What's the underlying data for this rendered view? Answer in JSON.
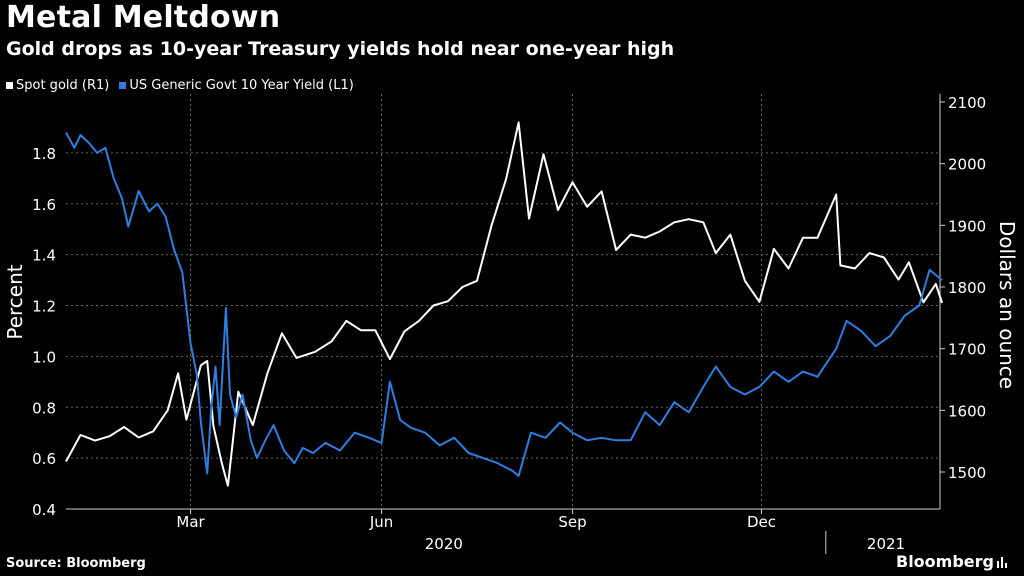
{
  "header": {
    "title": "Metal Meltdown",
    "subtitle": "Gold drops as 10-year Treasury yields hold near one-year high"
  },
  "footer": {
    "source": "Source: Bloomberg",
    "brand": "Bloomberg"
  },
  "colors": {
    "background": "#000000",
    "gold_series": "#ffffff",
    "yield_series": "#2e7fe0",
    "grid": "#666666"
  },
  "chart_data": {
    "type": "line",
    "legend_position": "top-left",
    "grid": true,
    "left_axis": {
      "label": "Percent",
      "range": [
        0.4,
        2.0
      ],
      "ticks": [
        0.4,
        0.6,
        0.8,
        1.0,
        1.2,
        1.4,
        1.6,
        1.8
      ],
      "tick_labels": [
        "0.4",
        "0.6",
        "0.8",
        "1.0",
        "1.2",
        "1.4",
        "1.6",
        "1.8"
      ]
    },
    "right_axis": {
      "label": "Dollars an ounce",
      "range": [
        1440,
        2100
      ],
      "ticks": [
        1500,
        1600,
        1700,
        1800,
        1900,
        2000,
        2100
      ],
      "tick_labels": [
        "1500",
        "1600",
        "1700",
        "1800",
        "1900",
        "2000",
        "2100"
      ]
    },
    "x_axis": {
      "range": [
        "2020-01-01",
        "2021-02-25"
      ],
      "ticks": [
        {
          "date": "2020-03-01",
          "label": "Mar"
        },
        {
          "date": "2020-06-01",
          "label": "Jun"
        },
        {
          "date": "2020-09-01",
          "label": "Sep"
        },
        {
          "date": "2020-12-01",
          "label": "Dec"
        }
      ],
      "year_labels": [
        {
          "date": "2020-07-01",
          "label": "2020"
        },
        {
          "date": "2021-01-30",
          "label": "2021"
        }
      ],
      "year_divider": "2021-01-01"
    },
    "series": [
      {
        "name": "Spot gold (R1)",
        "axis": "right",
        "points": [
          [
            "2020-01-01",
            1517
          ],
          [
            "2020-01-08",
            1560
          ],
          [
            "2020-01-15",
            1551
          ],
          [
            "2020-01-22",
            1558
          ],
          [
            "2020-01-29",
            1573
          ],
          [
            "2020-02-05",
            1556
          ],
          [
            "2020-02-12",
            1566
          ],
          [
            "2020-02-19",
            1600
          ],
          [
            "2020-02-24",
            1660
          ],
          [
            "2020-02-28",
            1585
          ],
          [
            "2020-03-06",
            1673
          ],
          [
            "2020-03-09",
            1680
          ],
          [
            "2020-03-12",
            1575
          ],
          [
            "2020-03-16",
            1515
          ],
          [
            "2020-03-19",
            1478
          ],
          [
            "2020-03-24",
            1630
          ],
          [
            "2020-03-31",
            1576
          ],
          [
            "2020-04-07",
            1660
          ],
          [
            "2020-04-14",
            1725
          ],
          [
            "2020-04-21",
            1685
          ],
          [
            "2020-04-30",
            1695
          ],
          [
            "2020-05-08",
            1712
          ],
          [
            "2020-05-15",
            1745
          ],
          [
            "2020-05-22",
            1730
          ],
          [
            "2020-05-29",
            1730
          ],
          [
            "2020-06-05",
            1683
          ],
          [
            "2020-06-12",
            1728
          ],
          [
            "2020-06-19",
            1745
          ],
          [
            "2020-06-26",
            1770
          ],
          [
            "2020-07-03",
            1777
          ],
          [
            "2020-07-10",
            1800
          ],
          [
            "2020-07-17",
            1810
          ],
          [
            "2020-07-24",
            1900
          ],
          [
            "2020-07-31",
            1975
          ],
          [
            "2020-08-06",
            2067
          ],
          [
            "2020-08-11",
            1911
          ],
          [
            "2020-08-18",
            2015
          ],
          [
            "2020-08-25",
            1925
          ],
          [
            "2020-09-01",
            1970
          ],
          [
            "2020-09-08",
            1930
          ],
          [
            "2020-09-15",
            1955
          ],
          [
            "2020-09-22",
            1860
          ],
          [
            "2020-09-29",
            1885
          ],
          [
            "2020-10-06",
            1880
          ],
          [
            "2020-10-13",
            1890
          ],
          [
            "2020-10-20",
            1905
          ],
          [
            "2020-10-27",
            1910
          ],
          [
            "2020-11-03",
            1905
          ],
          [
            "2020-11-09",
            1855
          ],
          [
            "2020-11-16",
            1885
          ],
          [
            "2020-11-23",
            1810
          ],
          [
            "2020-11-30",
            1776
          ],
          [
            "2020-12-07",
            1862
          ],
          [
            "2020-12-14",
            1830
          ],
          [
            "2020-12-21",
            1880
          ],
          [
            "2020-12-28",
            1880
          ],
          [
            "2021-01-06",
            1950
          ],
          [
            "2021-01-08",
            1835
          ],
          [
            "2021-01-15",
            1830
          ],
          [
            "2021-01-22",
            1855
          ],
          [
            "2021-01-29",
            1848
          ],
          [
            "2021-02-05",
            1812
          ],
          [
            "2021-02-10",
            1840
          ],
          [
            "2021-02-17",
            1775
          ],
          [
            "2021-02-23",
            1805
          ],
          [
            "2021-02-26",
            1774
          ]
        ]
      },
      {
        "name": "US Generic Govt 10 Year Yield  (L1)",
        "axis": "left",
        "points": [
          [
            "2020-01-01",
            1.88
          ],
          [
            "2020-01-05",
            1.82
          ],
          [
            "2020-01-08",
            1.87
          ],
          [
            "2020-01-12",
            1.84
          ],
          [
            "2020-01-16",
            1.8
          ],
          [
            "2020-01-20",
            1.82
          ],
          [
            "2020-01-24",
            1.7
          ],
          [
            "2020-01-28",
            1.62
          ],
          [
            "2020-01-31",
            1.51
          ],
          [
            "2020-02-05",
            1.65
          ],
          [
            "2020-02-10",
            1.57
          ],
          [
            "2020-02-14",
            1.6
          ],
          [
            "2020-02-18",
            1.55
          ],
          [
            "2020-02-22",
            1.42
          ],
          [
            "2020-02-26",
            1.33
          ],
          [
            "2020-03-01",
            1.05
          ],
          [
            "2020-03-04",
            0.93
          ],
          [
            "2020-03-06",
            0.74
          ],
          [
            "2020-03-09",
            0.54
          ],
          [
            "2020-03-11",
            0.8
          ],
          [
            "2020-03-13",
            0.96
          ],
          [
            "2020-03-15",
            0.73
          ],
          [
            "2020-03-18",
            1.19
          ],
          [
            "2020-03-20",
            0.85
          ],
          [
            "2020-03-23",
            0.76
          ],
          [
            "2020-03-26",
            0.85
          ],
          [
            "2020-03-30",
            0.67
          ],
          [
            "2020-04-02",
            0.6
          ],
          [
            "2020-04-06",
            0.67
          ],
          [
            "2020-04-10",
            0.73
          ],
          [
            "2020-04-15",
            0.63
          ],
          [
            "2020-04-20",
            0.58
          ],
          [
            "2020-04-24",
            0.64
          ],
          [
            "2020-04-29",
            0.62
          ],
          [
            "2020-05-05",
            0.66
          ],
          [
            "2020-05-12",
            0.63
          ],
          [
            "2020-05-19",
            0.7
          ],
          [
            "2020-05-26",
            0.68
          ],
          [
            "2020-06-01",
            0.66
          ],
          [
            "2020-06-05",
            0.9
          ],
          [
            "2020-06-10",
            0.75
          ],
          [
            "2020-06-15",
            0.72
          ],
          [
            "2020-06-22",
            0.7
          ],
          [
            "2020-06-29",
            0.65
          ],
          [
            "2020-07-06",
            0.68
          ],
          [
            "2020-07-13",
            0.62
          ],
          [
            "2020-07-20",
            0.6
          ],
          [
            "2020-07-27",
            0.58
          ],
          [
            "2020-08-03",
            0.55
          ],
          [
            "2020-08-06",
            0.53
          ],
          [
            "2020-08-12",
            0.7
          ],
          [
            "2020-08-19",
            0.68
          ],
          [
            "2020-08-26",
            0.74
          ],
          [
            "2020-09-01",
            0.7
          ],
          [
            "2020-09-08",
            0.67
          ],
          [
            "2020-09-15",
            0.68
          ],
          [
            "2020-09-22",
            0.67
          ],
          [
            "2020-09-29",
            0.67
          ],
          [
            "2020-10-06",
            0.78
          ],
          [
            "2020-10-13",
            0.73
          ],
          [
            "2020-10-20",
            0.82
          ],
          [
            "2020-10-27",
            0.78
          ],
          [
            "2020-11-03",
            0.88
          ],
          [
            "2020-11-09",
            0.96
          ],
          [
            "2020-11-16",
            0.88
          ],
          [
            "2020-11-23",
            0.85
          ],
          [
            "2020-11-30",
            0.88
          ],
          [
            "2020-12-07",
            0.94
          ],
          [
            "2020-12-14",
            0.9
          ],
          [
            "2020-12-21",
            0.94
          ],
          [
            "2020-12-28",
            0.92
          ],
          [
            "2021-01-06",
            1.03
          ],
          [
            "2021-01-11",
            1.14
          ],
          [
            "2021-01-18",
            1.1
          ],
          [
            "2021-01-25",
            1.04
          ],
          [
            "2021-02-01",
            1.08
          ],
          [
            "2021-02-08",
            1.16
          ],
          [
            "2021-02-15",
            1.2
          ],
          [
            "2021-02-20",
            1.34
          ],
          [
            "2021-02-26",
            1.3
          ]
        ]
      }
    ]
  }
}
